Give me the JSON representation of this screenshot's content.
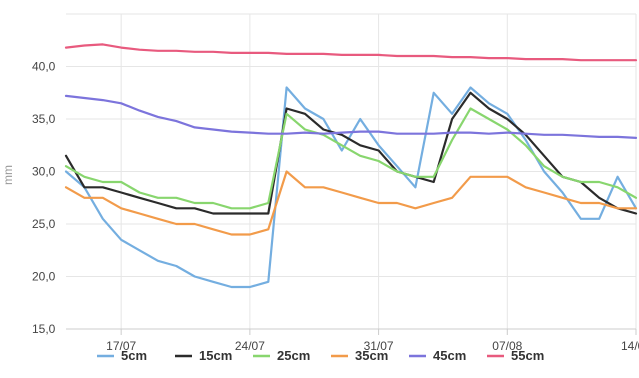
{
  "chart_data": {
    "type": "line",
    "title": "",
    "xlabel": "",
    "ylabel": "mm",
    "ylim": [
      15,
      45
    ],
    "xlim": [
      "2016-07-14",
      "2016-08-14"
    ],
    "y_ticks": [
      "15,0",
      "20,0",
      "25,0",
      "30,0",
      "35,0",
      "40,0"
    ],
    "x_ticks": [
      "17/07",
      "24/07",
      "31/07",
      "07/08",
      "14/08"
    ],
    "grid": true,
    "legend": "bottom",
    "x_dates": [
      "07-14",
      "07-15",
      "07-16",
      "07-17",
      "07-18",
      "07-19",
      "07-20",
      "07-21",
      "07-22",
      "07-23",
      "07-24",
      "07-25",
      "07-26",
      "07-27",
      "07-28",
      "07-29",
      "07-30",
      "07-31",
      "08-01",
      "08-02",
      "08-03",
      "08-04",
      "08-05",
      "08-06",
      "08-07",
      "08-08",
      "08-09",
      "08-10",
      "08-11",
      "08-12",
      "08-13",
      "08-14"
    ],
    "series": [
      {
        "name": "5cm",
        "color": "#74aee0",
        "values": [
          30.0,
          28.5,
          25.5,
          23.5,
          22.5,
          21.5,
          21.0,
          20.0,
          19.5,
          19.0,
          19.0,
          19.5,
          38.0,
          36.0,
          35.0,
          32.0,
          35.0,
          32.5,
          30.5,
          28.5,
          37.5,
          35.5,
          38.0,
          36.5,
          35.5,
          33.0,
          30.0,
          28.0,
          25.5,
          25.5,
          29.5,
          26.5
        ]
      },
      {
        "name": "15cm",
        "color": "#2b2b2b",
        "values": [
          31.5,
          28.5,
          28.5,
          28.0,
          27.5,
          27.0,
          26.5,
          26.5,
          26.0,
          26.0,
          26.0,
          26.0,
          36.0,
          35.5,
          34.0,
          33.5,
          32.5,
          32.0,
          30.0,
          29.5,
          29.0,
          35.0,
          37.5,
          36.0,
          35.0,
          33.5,
          31.5,
          29.5,
          29.0,
          27.5,
          26.5,
          26.0
        ]
      },
      {
        "name": "25cm",
        "color": "#88d66e",
        "values": [
          30.5,
          29.5,
          29.0,
          29.0,
          28.0,
          27.5,
          27.5,
          27.0,
          27.0,
          26.5,
          26.5,
          27.0,
          35.5,
          34.0,
          33.5,
          32.5,
          31.5,
          31.0,
          30.0,
          29.5,
          29.5,
          33.0,
          36.0,
          35.0,
          34.0,
          32.5,
          30.5,
          29.5,
          29.0,
          29.0,
          28.5,
          27.5
        ]
      },
      {
        "name": "35cm",
        "color": "#f29b4a",
        "values": [
          28.5,
          27.5,
          27.5,
          26.5,
          26.0,
          25.5,
          25.0,
          25.0,
          24.5,
          24.0,
          24.0,
          24.5,
          30.0,
          28.5,
          28.5,
          28.0,
          27.5,
          27.0,
          27.0,
          26.5,
          27.0,
          27.5,
          29.5,
          29.5,
          29.5,
          28.5,
          28.0,
          27.5,
          27.0,
          27.0,
          26.5,
          26.5
        ]
      },
      {
        "name": "45cm",
        "color": "#7c74dc",
        "values": [
          37.2,
          37.0,
          36.8,
          36.5,
          35.8,
          35.2,
          34.8,
          34.2,
          34.0,
          33.8,
          33.7,
          33.6,
          33.6,
          33.7,
          33.6,
          33.7,
          33.8,
          33.8,
          33.6,
          33.6,
          33.6,
          33.7,
          33.7,
          33.6,
          33.7,
          33.6,
          33.5,
          33.5,
          33.4,
          33.3,
          33.3,
          33.2
        ]
      },
      {
        "name": "55cm",
        "color": "#e85a7e",
        "values": [
          41.8,
          42.0,
          42.1,
          41.8,
          41.6,
          41.5,
          41.5,
          41.4,
          41.4,
          41.3,
          41.3,
          41.3,
          41.2,
          41.2,
          41.2,
          41.1,
          41.1,
          41.1,
          41.0,
          41.0,
          41.0,
          40.9,
          40.9,
          40.8,
          40.8,
          40.7,
          40.7,
          40.7,
          40.6,
          40.6,
          40.6,
          40.6
        ]
      }
    ]
  },
  "colors": {
    "grid": "#e6e6e6",
    "axis_title": "#999999",
    "tick": "#444444"
  }
}
